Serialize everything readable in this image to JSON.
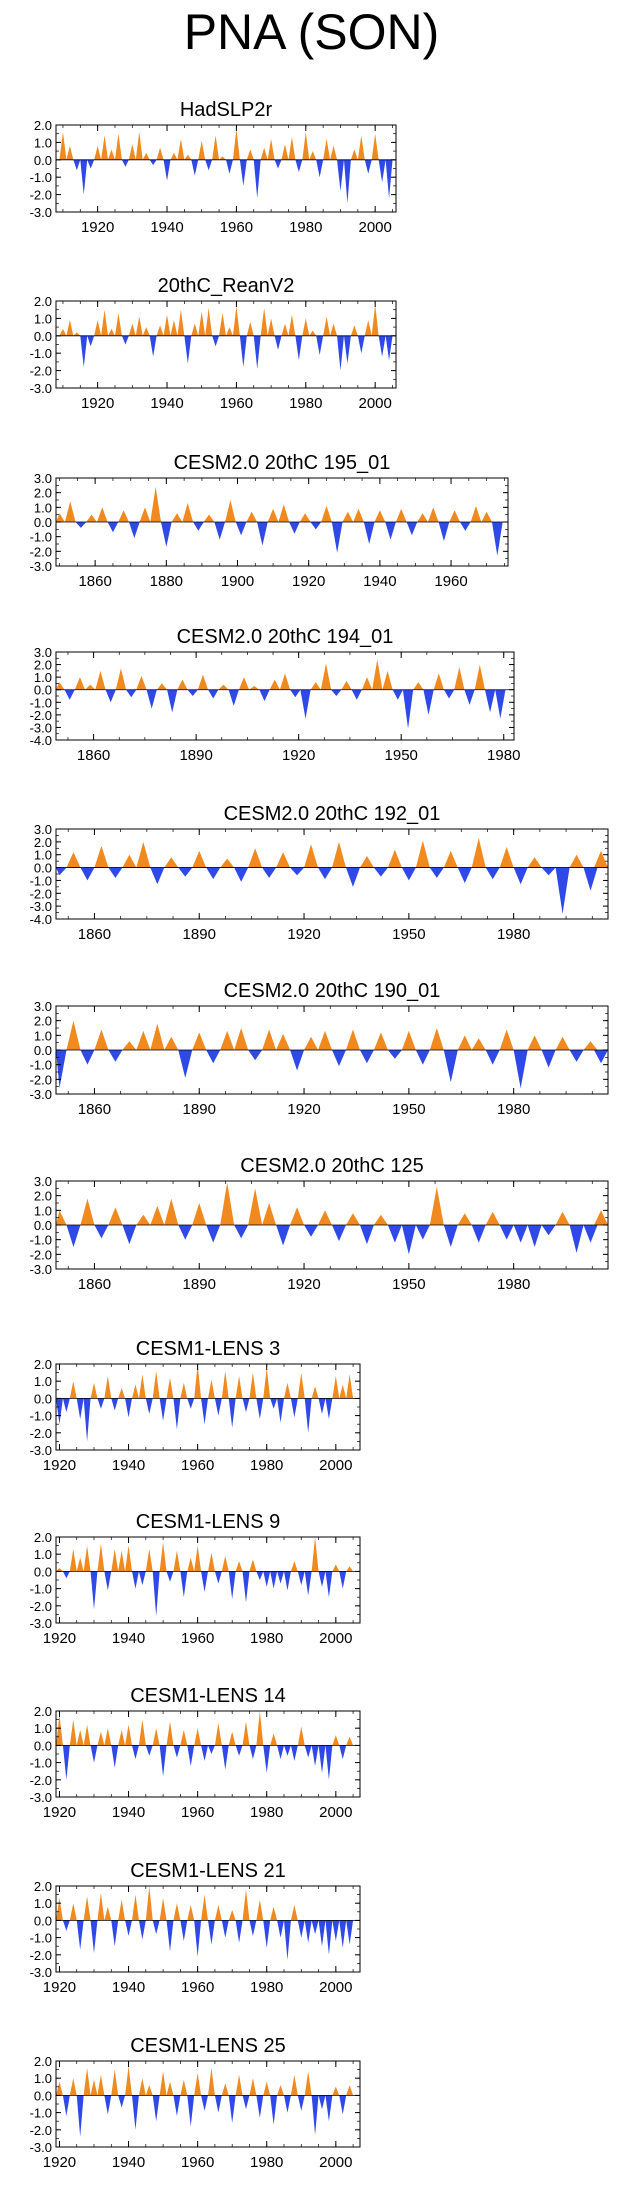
{
  "title": "PNA (SON)",
  "colors": {
    "positive": "#f08a1f",
    "negative": "#2f49e8",
    "frame": "#000000"
  },
  "chart_data": [
    {
      "type": "area",
      "title": "HadSLP2r",
      "xlim": [
        1908,
        2006
      ],
      "ylim": [
        -3.0,
        2.0
      ],
      "xticks": [
        1920,
        1940,
        1960,
        1980,
        2000
      ],
      "yticks": [
        2.0,
        1.0,
        0.0,
        -1.0,
        -2.0,
        -3.0
      ],
      "x": [
        1910,
        1912,
        1914,
        1916,
        1918,
        1920,
        1922,
        1924,
        1926,
        1928,
        1930,
        1932,
        1934,
        1936,
        1938,
        1940,
        1942,
        1944,
        1946,
        1948,
        1950,
        1952,
        1954,
        1956,
        1958,
        1960,
        1962,
        1964,
        1966,
        1968,
        1970,
        1972,
        1974,
        1976,
        1978,
        1980,
        1982,
        1984,
        1986,
        1988,
        1990,
        1992,
        1994,
        1996,
        1998,
        2000,
        2002,
        2004
      ],
      "values": [
        1.6,
        0.8,
        -0.6,
        -2.0,
        -0.5,
        0.8,
        1.4,
        0.6,
        1.5,
        -0.4,
        0.9,
        1.6,
        0.4,
        -0.3,
        0.7,
        -1.2,
        0.4,
        1.2,
        0.3,
        -0.9,
        1.1,
        -0.6,
        1.4,
        0.2,
        -0.8,
        1.8,
        -1.5,
        0.6,
        -2.2,
        0.7,
        1.2,
        -0.5,
        0.9,
        1.3,
        -0.7,
        1.6,
        0.5,
        -1.0,
        1.2,
        0.8,
        -1.8,
        -2.5,
        0.6,
        1.4,
        -0.8,
        1.5,
        -1.3,
        -2.2
      ]
    },
    {
      "type": "area",
      "title": "20thC_ReanV2",
      "xlim": [
        1908,
        2006
      ],
      "ylim": [
        -3.0,
        2.0
      ],
      "xticks": [
        1920,
        1940,
        1960,
        1980,
        2000
      ],
      "yticks": [
        2.0,
        1.0,
        0.0,
        -1.0,
        -2.0,
        -3.0
      ],
      "x": [
        1910,
        1912,
        1914,
        1916,
        1918,
        1920,
        1922,
        1924,
        1926,
        1928,
        1930,
        1932,
        1934,
        1936,
        1938,
        1940,
        1942,
        1944,
        1946,
        1948,
        1950,
        1952,
        1954,
        1956,
        1958,
        1960,
        1962,
        1964,
        1966,
        1968,
        1970,
        1972,
        1974,
        1976,
        1978,
        1980,
        1982,
        1984,
        1986,
        1988,
        1990,
        1992,
        1994,
        1996,
        1998,
        2000,
        2002,
        2004
      ],
      "values": [
        0.4,
        0.9,
        0.2,
        -1.8,
        -0.6,
        0.9,
        1.5,
        0.4,
        1.3,
        -0.5,
        0.7,
        1.1,
        0.5,
        -1.2,
        0.6,
        1.2,
        0.9,
        1.5,
        -1.6,
        0.7,
        1.4,
        1.6,
        -0.6,
        1.3,
        0.5,
        1.7,
        -1.8,
        0.8,
        -1.9,
        1.6,
        1.0,
        -0.8,
        0.7,
        1.2,
        -1.4,
        1.0,
        0.3,
        -1.1,
        1.1,
        0.7,
        -2.0,
        -1.6,
        0.6,
        -1.0,
        0.9,
        1.8,
        -1.2,
        -1.4
      ]
    },
    {
      "type": "area",
      "title": "CESM2.0 20thC 195_01",
      "xlim": [
        1849,
        1976
      ],
      "ylim": [
        -3.0,
        3.0
      ],
      "xticks": [
        1860,
        1880,
        1900,
        1920,
        1940,
        1960
      ],
      "yticks": [
        3.0,
        2.0,
        1.0,
        0.0,
        -1.0,
        -2.0,
        -3.0
      ],
      "x": [
        1850,
        1853,
        1856,
        1859,
        1862,
        1865,
        1868,
        1871,
        1874,
        1877,
        1880,
        1883,
        1886,
        1889,
        1892,
        1895,
        1898,
        1901,
        1904,
        1907,
        1910,
        1913,
        1916,
        1919,
        1922,
        1925,
        1928,
        1931,
        1934,
        1937,
        1940,
        1943,
        1946,
        1949,
        1952,
        1955,
        1958,
        1961,
        1964,
        1967,
        1970,
        1973
      ],
      "values": [
        0.6,
        1.4,
        -0.4,
        0.5,
        1.0,
        -0.7,
        0.8,
        -1.1,
        1.0,
        2.4,
        -1.7,
        0.6,
        1.3,
        -0.6,
        0.5,
        -1.2,
        1.5,
        -0.9,
        0.7,
        -1.6,
        0.9,
        1.2,
        -0.8,
        0.6,
        -0.5,
        1.1,
        -2.1,
        0.7,
        0.9,
        -1.5,
        0.8,
        -1.2,
        0.9,
        -0.9,
        0.6,
        1.0,
        -1.3,
        0.8,
        -0.6,
        1.1,
        0.7,
        -2.3
      ]
    },
    {
      "type": "area",
      "title": "CESM2.0 20thC 194_01",
      "xlim": [
        1849,
        1983
      ],
      "ylim": [
        -4.0,
        3.0
      ],
      "xticks": [
        1860,
        1890,
        1920,
        1950,
        1980
      ],
      "yticks": [
        3.0,
        2.0,
        1.0,
        0.0,
        -1.0,
        -2.0,
        -3.0,
        -4.0
      ],
      "x": [
        1850,
        1853,
        1856,
        1859,
        1862,
        1865,
        1868,
        1871,
        1874,
        1877,
        1880,
        1883,
        1886,
        1889,
        1892,
        1895,
        1898,
        1901,
        1904,
        1907,
        1910,
        1913,
        1916,
        1919,
        1922,
        1925,
        1928,
        1931,
        1934,
        1937,
        1940,
        1943,
        1946,
        1949,
        1952,
        1955,
        1958,
        1961,
        1964,
        1967,
        1970,
        1973,
        1976,
        1979
      ],
      "values": [
        0.6,
        -0.8,
        1.0,
        0.4,
        1.5,
        -1.0,
        1.7,
        -0.6,
        1.1,
        -1.5,
        0.5,
        -1.8,
        0.8,
        -0.5,
        1.2,
        -0.7,
        0.4,
        -1.3,
        1.0,
        0.3,
        -0.9,
        0.8,
        1.3,
        -0.6,
        -2.3,
        0.6,
        2.1,
        -0.5,
        0.7,
        -0.8,
        1.0,
        2.4,
        1.5,
        -0.8,
        -3.1,
        0.6,
        -2.0,
        1.3,
        -0.7,
        1.8,
        -1.2,
        2.0,
        -1.8,
        -2.3
      ]
    },
    {
      "type": "area",
      "title": "CESM2.0 20thC 192_01",
      "xlim": [
        1849,
        2007
      ],
      "ylim": [
        -4.0,
        3.0
      ],
      "xticks": [
        1860,
        1890,
        1920,
        1950,
        1980
      ],
      "yticks": [
        3.0,
        2.0,
        1.0,
        0.0,
        -1.0,
        -2.0,
        -3.0,
        -4.0
      ],
      "x": [
        1850,
        1854,
        1858,
        1862,
        1866,
        1870,
        1874,
        1878,
        1882,
        1886,
        1890,
        1894,
        1898,
        1902,
        1906,
        1910,
        1914,
        1918,
        1922,
        1926,
        1930,
        1934,
        1938,
        1942,
        1946,
        1950,
        1954,
        1958,
        1962,
        1966,
        1970,
        1974,
        1978,
        1982,
        1986,
        1990,
        1994,
        1998,
        2002,
        2005
      ],
      "values": [
        -0.6,
        1.2,
        -1.0,
        1.7,
        -0.8,
        1.0,
        2.0,
        -1.3,
        0.8,
        -0.7,
        1.3,
        -0.9,
        0.7,
        -1.1,
        1.5,
        -0.8,
        1.2,
        -0.6,
        1.8,
        -0.9,
        2.0,
        -1.5,
        0.9,
        -0.7,
        1.4,
        -1.0,
        2.1,
        -0.8,
        1.3,
        -1.2,
        2.3,
        -0.9,
        1.6,
        -1.3,
        0.8,
        -0.6,
        -3.6,
        1.0,
        -1.8,
        1.3
      ]
    },
    {
      "type": "area",
      "title": "CESM2.0 20thC 190_01",
      "xlim": [
        1849,
        2007
      ],
      "ylim": [
        -3.0,
        3.0
      ],
      "xticks": [
        1860,
        1890,
        1920,
        1950,
        1980
      ],
      "yticks": [
        3.0,
        2.0,
        1.0,
        0.0,
        -1.0,
        -2.0,
        -3.0
      ],
      "x": [
        1850,
        1854,
        1858,
        1862,
        1866,
        1870,
        1874,
        1878,
        1882,
        1886,
        1890,
        1894,
        1898,
        1902,
        1906,
        1910,
        1914,
        1918,
        1922,
        1926,
        1930,
        1934,
        1938,
        1942,
        1946,
        1950,
        1954,
        1958,
        1962,
        1966,
        1970,
        1974,
        1978,
        1982,
        1986,
        1990,
        1994,
        1998,
        2002,
        2005
      ],
      "values": [
        -2.6,
        2.0,
        -1.0,
        1.4,
        -0.8,
        0.6,
        1.3,
        1.8,
        0.9,
        -1.9,
        1.2,
        -0.9,
        1.3,
        1.5,
        -0.7,
        1.4,
        1.1,
        -1.4,
        0.9,
        1.3,
        -1.1,
        1.4,
        -0.9,
        1.2,
        -0.6,
        1.3,
        -1.0,
        1.5,
        -2.2,
        1.0,
        0.8,
        -1.0,
        1.4,
        -2.6,
        1.0,
        -1.2,
        0.9,
        -0.8,
        0.6,
        -0.9
      ]
    },
    {
      "type": "area",
      "title": "CESM2.0 20thC 125",
      "xlim": [
        1849,
        2007
      ],
      "ylim": [
        -3.0,
        3.0
      ],
      "xticks": [
        1860,
        1890,
        1920,
        1950,
        1980
      ],
      "yticks": [
        3.0,
        2.0,
        1.0,
        0.0,
        -1.0,
        -2.0,
        -3.0
      ],
      "x": [
        1850,
        1854,
        1858,
        1862,
        1866,
        1870,
        1874,
        1878,
        1882,
        1886,
        1890,
        1894,
        1898,
        1902,
        1906,
        1910,
        1914,
        1918,
        1922,
        1926,
        1930,
        1934,
        1938,
        1942,
        1946,
        1950,
        1954,
        1958,
        1962,
        1966,
        1970,
        1974,
        1978,
        1982,
        1986,
        1990,
        1994,
        1998,
        2002,
        2005
      ],
      "values": [
        1.0,
        -1.5,
        1.8,
        -0.9,
        1.2,
        -1.3,
        0.7,
        1.3,
        1.8,
        -1.0,
        1.5,
        -1.2,
        2.9,
        -0.9,
        2.5,
        1.5,
        -1.4,
        1.2,
        -0.8,
        1.0,
        -1.1,
        0.8,
        -1.3,
        0.7,
        -1.2,
        -2.0,
        -1.0,
        2.6,
        -1.5,
        0.8,
        -1.2,
        0.9,
        -1.0,
        -1.2,
        -1.5,
        -0.7,
        0.9,
        -1.9,
        -1.2,
        1.0
      ]
    },
    {
      "type": "area",
      "title": "CESM1-LENS 3",
      "xlim": [
        1919,
        2007
      ],
      "ylim": [
        -3.0,
        2.0
      ],
      "xticks": [
        1920,
        1940,
        1960,
        1980,
        2000
      ],
      "yticks": [
        2.0,
        1.0,
        0.0,
        -1.0,
        -2.0,
        -3.0
      ],
      "x": [
        1920,
        1922,
        1924,
        1926,
        1928,
        1930,
        1932,
        1934,
        1936,
        1938,
        1940,
        1942,
        1944,
        1946,
        1948,
        1950,
        1952,
        1954,
        1956,
        1958,
        1960,
        1962,
        1964,
        1966,
        1968,
        1970,
        1972,
        1974,
        1976,
        1978,
        1980,
        1982,
        1984,
        1986,
        1988,
        1990,
        1992,
        1994,
        1996,
        1998,
        2000,
        2002,
        2004
      ],
      "values": [
        -1.5,
        -0.8,
        1.0,
        -1.2,
        -2.5,
        0.9,
        -0.6,
        1.3,
        -0.7,
        0.6,
        -1.1,
        0.8,
        1.4,
        -0.9,
        1.6,
        -1.3,
        1.2,
        -1.8,
        0.9,
        -0.6,
        2.0,
        -1.5,
        1.1,
        -1.0,
        1.6,
        -1.7,
        1.3,
        -0.8,
        1.5,
        -1.2,
        1.8,
        -0.6,
        -1.4,
        0.9,
        -1.1,
        1.5,
        -2.0,
        0.7,
        -0.9,
        -1.2,
        1.3,
        0.8,
        1.4
      ]
    },
    {
      "type": "area",
      "title": "CESM1-LENS 9",
      "xlim": [
        1919,
        2007
      ],
      "ylim": [
        -3.0,
        2.0
      ],
      "xticks": [
        1920,
        1940,
        1960,
        1980,
        2000
      ],
      "yticks": [
        2.0,
        1.0,
        0.0,
        -1.0,
        -2.0,
        -3.0
      ],
      "x": [
        1920,
        1922,
        1924,
        1926,
        1928,
        1930,
        1932,
        1934,
        1936,
        1938,
        1940,
        1942,
        1944,
        1946,
        1948,
        1950,
        1952,
        1954,
        1956,
        1958,
        1960,
        1962,
        1964,
        1966,
        1968,
        1970,
        1972,
        1974,
        1976,
        1978,
        1980,
        1982,
        1984,
        1986,
        1988,
        1990,
        1992,
        1994,
        1996,
        1998,
        2000,
        2002,
        2004
      ],
      "values": [
        0.2,
        -0.4,
        1.3,
        0.8,
        1.5,
        -2.2,
        1.6,
        -1.1,
        1.3,
        1.2,
        1.5,
        -1.0,
        -0.8,
        1.3,
        -2.6,
        1.7,
        -0.6,
        1.2,
        -1.5,
        0.8,
        1.5,
        -1.2,
        1.1,
        -0.7,
        0.9,
        -1.6,
        0.6,
        -1.8,
        0.7,
        -0.5,
        -0.9,
        -1.0,
        -0.7,
        -1.1,
        0.6,
        -0.8,
        -1.4,
        2.0,
        -0.9,
        -1.5,
        0.4,
        -1.0,
        0.3
      ]
    },
    {
      "type": "area",
      "title": "CESM1-LENS 14",
      "xlim": [
        1919,
        2007
      ],
      "ylim": [
        -3.0,
        2.0
      ],
      "xticks": [
        1920,
        1940,
        1960,
        1980,
        2000
      ],
      "yticks": [
        2.0,
        1.0,
        0.0,
        -1.0,
        -2.0,
        -3.0
      ],
      "x": [
        1920,
        1922,
        1924,
        1926,
        1928,
        1930,
        1932,
        1934,
        1936,
        1938,
        1940,
        1942,
        1944,
        1946,
        1948,
        1950,
        1952,
        1954,
        1956,
        1958,
        1960,
        1962,
        1964,
        1966,
        1968,
        1970,
        1972,
        1974,
        1976,
        1978,
        1980,
        1982,
        1984,
        1986,
        1988,
        1990,
        1992,
        1994,
        1996,
        1998,
        2000,
        2002,
        2004
      ],
      "values": [
        1.8,
        -2.0,
        1.5,
        0.9,
        1.2,
        -1.0,
        0.8,
        1.0,
        -1.3,
        0.9,
        1.2,
        -0.8,
        1.5,
        -0.6,
        1.0,
        -1.8,
        1.4,
        -0.7,
        0.9,
        -1.2,
        1.0,
        -0.9,
        -0.5,
        1.3,
        -1.4,
        0.8,
        -0.6,
        1.4,
        -0.8,
        2.0,
        -1.6,
        0.7,
        -0.8,
        -0.6,
        -0.9,
        1.1,
        -0.7,
        -1.2,
        -1.6,
        -2.0,
        0.6,
        -0.8,
        0.5
      ]
    },
    {
      "type": "area",
      "title": "CESM1-LENS 21",
      "xlim": [
        1919,
        2007
      ],
      "ylim": [
        -3.0,
        2.0
      ],
      "xticks": [
        1920,
        1940,
        1960,
        1980,
        2000
      ],
      "yticks": [
        2.0,
        1.0,
        0.0,
        -1.0,
        -2.0,
        -3.0
      ],
      "x": [
        1920,
        1922,
        1924,
        1926,
        1928,
        1930,
        1932,
        1934,
        1936,
        1938,
        1940,
        1942,
        1944,
        1946,
        1948,
        1950,
        1952,
        1954,
        1956,
        1958,
        1960,
        1962,
        1964,
        1966,
        1968,
        1970,
        1972,
        1974,
        1976,
        1978,
        1980,
        1982,
        1984,
        1986,
        1988,
        1990,
        1992,
        1994,
        1996,
        1998,
        2000,
        2002,
        2004
      ],
      "values": [
        1.3,
        -0.6,
        1.0,
        -1.7,
        1.4,
        -1.9,
        1.6,
        0.8,
        -1.5,
        1.2,
        -0.9,
        1.5,
        -1.1,
        2.0,
        -0.8,
        1.3,
        -1.8,
        1.0,
        -1.2,
        0.9,
        -2.1,
        1.5,
        -1.4,
        0.9,
        -1.0,
        0.6,
        -1.3,
        1.8,
        -0.9,
        1.2,
        -1.6,
        0.8,
        -1.0,
        -2.3,
        0.9,
        -1.0,
        -1.3,
        -0.8,
        -1.5,
        -2.0,
        -1.2,
        -1.6,
        -1.4
      ]
    },
    {
      "type": "area",
      "title": "CESM1-LENS 25",
      "xlim": [
        1919,
        2007
      ],
      "ylim": [
        -3.0,
        2.0
      ],
      "xticks": [
        1920,
        1940,
        1960,
        1980,
        2000
      ],
      "yticks": [
        2.0,
        1.0,
        0.0,
        -1.0,
        -2.0,
        -3.0
      ],
      "x": [
        1920,
        1922,
        1924,
        1926,
        1928,
        1930,
        1932,
        1934,
        1936,
        1938,
        1940,
        1942,
        1944,
        1946,
        1948,
        1950,
        1952,
        1954,
        1956,
        1958,
        1960,
        1962,
        1964,
        1966,
        1968,
        1970,
        1972,
        1974,
        1976,
        1978,
        1980,
        1982,
        1984,
        1986,
        1988,
        1990,
        1992,
        1994,
        1996,
        1998,
        2000,
        2002,
        2004
      ],
      "values": [
        0.8,
        -1.2,
        1.0,
        -2.4,
        1.6,
        0.9,
        1.2,
        -1.1,
        1.5,
        -0.7,
        1.7,
        -2.0,
        1.0,
        0.6,
        -1.5,
        1.4,
        0.8,
        -1.2,
        0.9,
        -1.8,
        1.3,
        -0.9,
        1.6,
        -1.0,
        0.7,
        -1.6,
        1.2,
        -0.8,
        1.0,
        -1.3,
        0.8,
        -1.7,
        0.6,
        -1.0,
        1.2,
        -0.9,
        1.4,
        -2.3,
        -0.8,
        -1.5,
        0.5,
        -1.1,
        0.6
      ]
    }
  ]
}
